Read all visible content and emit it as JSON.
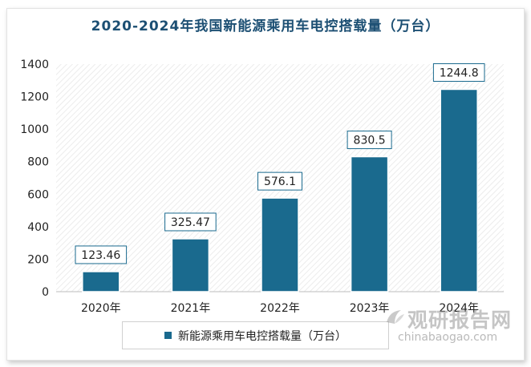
{
  "chart_data": {
    "type": "bar",
    "title": "2020-2024年我国新能源乘用车电控搭载量（万台）",
    "categories": [
      "2020年",
      "2021年",
      "2022年",
      "2023年",
      "2024年"
    ],
    "series": [
      {
        "name": "新能源乘用车电控搭载量（万台）",
        "values": [
          123.46,
          325.47,
          576.1,
          830.5,
          1244.8
        ]
      }
    ],
    "data_labels": [
      "123.46",
      "325.47",
      "576.1",
      "830.5",
      "1244.8"
    ],
    "ylim": [
      0,
      1400
    ],
    "yticks": [
      0,
      200,
      400,
      600,
      800,
      1000,
      1200,
      1400
    ],
    "xlabel": "",
    "ylabel": "",
    "legend_position": "bottom",
    "grid": false,
    "bar_color": "#1a6a8e"
  },
  "watermark": {
    "brand_cn": "观研报告网",
    "brand_en": "chinabaogao.com"
  }
}
